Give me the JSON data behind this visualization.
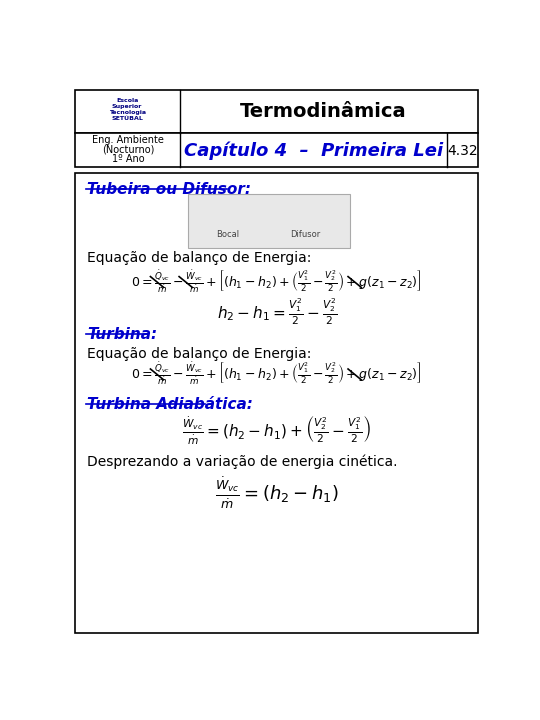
{
  "title": "Termodinâmica",
  "subtitle": "Capítulo 4  –  Primeira Lei",
  "page_num": "4.32",
  "left_lines": [
    "Eng. Ambiente",
    "(Nocturno)",
    "1º Ano"
  ],
  "section_title": "Tubeira ou Difusor:",
  "eq_label1": "Equação de balanço de Energia:",
  "turbina_label": "Turbina:",
  "eq_label2": "Equação de balanço de Energia:",
  "turb_adiab_label": "Turbina Adiabática:",
  "desp_label": "Desprezando a variação de energia cinética.",
  "blue": "#0000CC",
  "box_border": "#000000"
}
